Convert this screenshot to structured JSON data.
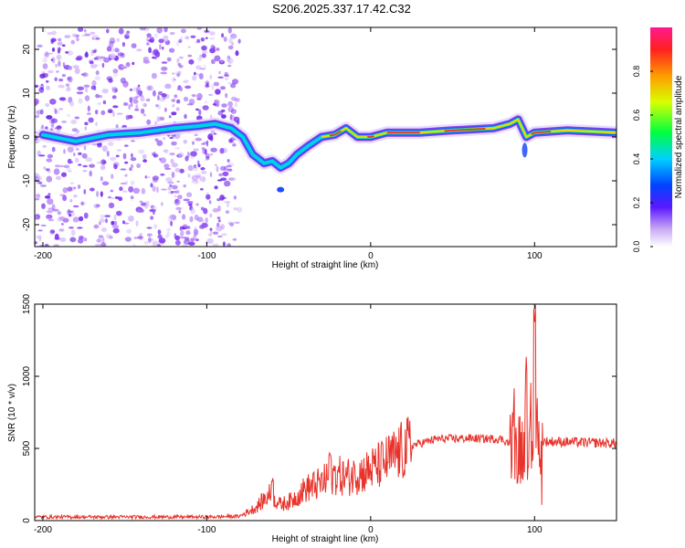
{
  "title": "S206.2025.337.17.42.C32",
  "colors": {
    "snr_line": "#e8322a",
    "axis": "#000000",
    "ridge_core": "#e8322a"
  },
  "chart_data": [
    {
      "type": "heatmap",
      "name": "spectrogram",
      "xlabel": "Height of straight line (km)",
      "ylabel": "Frequency (Hz)",
      "xlim": [
        -205,
        150
      ],
      "ylim": [
        -25,
        25
      ],
      "xticks": [
        -200,
        -100,
        0,
        100
      ],
      "yticks": [
        -20,
        -10,
        0,
        10,
        20
      ],
      "colorbar": {
        "label": "Normalized spectral amplitude",
        "range": [
          0,
          1
        ],
        "ticks": [
          0.0,
          0.2,
          0.4,
          0.6,
          0.8
        ]
      },
      "ridge": [
        {
          "x": -200,
          "y": 0.5
        },
        {
          "x": -180,
          "y": -1
        },
        {
          "x": -160,
          "y": 0.5
        },
        {
          "x": -140,
          "y": 1
        },
        {
          "x": -120,
          "y": 2
        },
        {
          "x": -105,
          "y": 2.5
        },
        {
          "x": -95,
          "y": 3
        },
        {
          "x": -85,
          "y": 2
        },
        {
          "x": -78,
          "y": 0
        },
        {
          "x": -72,
          "y": -4
        },
        {
          "x": -65,
          "y": -6
        },
        {
          "x": -60,
          "y": -5.5
        },
        {
          "x": -55,
          "y": -7
        },
        {
          "x": -50,
          "y": -6
        },
        {
          "x": -45,
          "y": -4
        },
        {
          "x": -38,
          "y": -2
        },
        {
          "x": -30,
          "y": 0
        },
        {
          "x": -22,
          "y": 0.5
        },
        {
          "x": -15,
          "y": 2
        },
        {
          "x": -8,
          "y": 0
        },
        {
          "x": 0,
          "y": 0
        },
        {
          "x": 10,
          "y": 1
        },
        {
          "x": 30,
          "y": 1
        },
        {
          "x": 50,
          "y": 1.5
        },
        {
          "x": 75,
          "y": 2
        },
        {
          "x": 85,
          "y": 3
        },
        {
          "x": 90,
          "y": 4
        },
        {
          "x": 95,
          "y": 0
        },
        {
          "x": 100,
          "y": 1
        },
        {
          "x": 120,
          "y": 1.5
        },
        {
          "x": 150,
          "y": 1
        }
      ]
    },
    {
      "type": "line",
      "name": "snr",
      "xlabel": "Height of straight line (km)",
      "ylabel": "SNR (10 * v/v)",
      "xlim": [
        -205,
        150
      ],
      "ylim": [
        0,
        1500
      ],
      "xticks": [
        -200,
        -100,
        0,
        100
      ],
      "yticks": [
        0,
        500,
        1000,
        1500
      ],
      "series": [
        {
          "name": "SNR",
          "envelope": [
            {
              "x": -205,
              "y": 25
            },
            {
              "x": -100,
              "y": 25
            },
            {
              "x": -80,
              "y": 30
            },
            {
              "x": -70,
              "y": 90
            },
            {
              "x": -62,
              "y": 180
            },
            {
              "x": -55,
              "y": 110
            },
            {
              "x": -48,
              "y": 140
            },
            {
              "x": -40,
              "y": 220
            },
            {
              "x": -30,
              "y": 260
            },
            {
              "x": -22,
              "y": 320
            },
            {
              "x": -15,
              "y": 300
            },
            {
              "x": -5,
              "y": 330
            },
            {
              "x": 5,
              "y": 380
            },
            {
              "x": 15,
              "y": 450
            },
            {
              "x": 25,
              "y": 520
            },
            {
              "x": 40,
              "y": 565
            },
            {
              "x": 60,
              "y": 570
            },
            {
              "x": 80,
              "y": 565
            },
            {
              "x": 90,
              "y": 500
            },
            {
              "x": 100,
              "y": 550
            },
            {
              "x": 120,
              "y": 545
            },
            {
              "x": 150,
              "y": 535
            }
          ],
          "peaks": [
            {
              "x": -60,
              "y": 300
            },
            {
              "x": -35,
              "y": 340
            },
            {
              "x": -25,
              "y": 480
            },
            {
              "x": -10,
              "y": 420
            },
            {
              "x": 95,
              "y": 1150
            },
            {
              "x": 100,
              "y": 1500
            }
          ]
        }
      ]
    }
  ]
}
